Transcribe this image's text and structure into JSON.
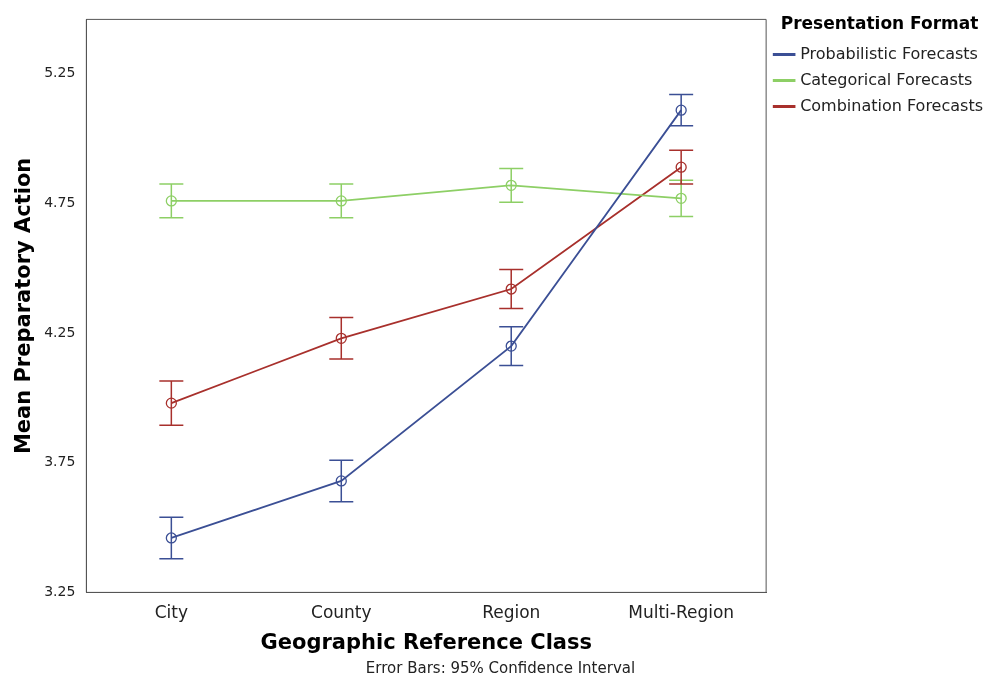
{
  "chart_data": {
    "type": "line",
    "categories": [
      "City",
      "County",
      "Region",
      "Multi-Region"
    ],
    "xlabel": "Geographic Reference Class",
    "ylabel": "Mean Preparatory Action",
    "legend_title": "Presentation Format",
    "legend": "top right",
    "marker": "circle",
    "grid": false,
    "ylim": [
      3.25,
      5.46
    ],
    "yticks": [
      3.25,
      3.75,
      4.25,
      4.75,
      5.25
    ],
    "annotations": [
      "Error Bars: 95% Confidence Interval"
    ],
    "series": [
      {
        "name": "Probabilistic Forecasts",
        "color": "#3b4f95",
        "values": [
          3.46,
          3.68,
          4.2,
          5.11
        ],
        "errors": [
          0.08,
          0.08,
          0.075,
          0.06
        ]
      },
      {
        "name": "Categorical Forecasts",
        "color": "#8dcf65",
        "values": [
          4.76,
          4.76,
          4.82,
          4.77
        ],
        "errors": [
          0.065,
          0.065,
          0.065,
          0.07
        ]
      },
      {
        "name": "Combination Forecasts",
        "color": "#a8302c",
        "values": [
          3.98,
          4.23,
          4.42,
          4.89
        ],
        "errors": [
          0.085,
          0.08,
          0.075,
          0.065
        ]
      }
    ]
  }
}
